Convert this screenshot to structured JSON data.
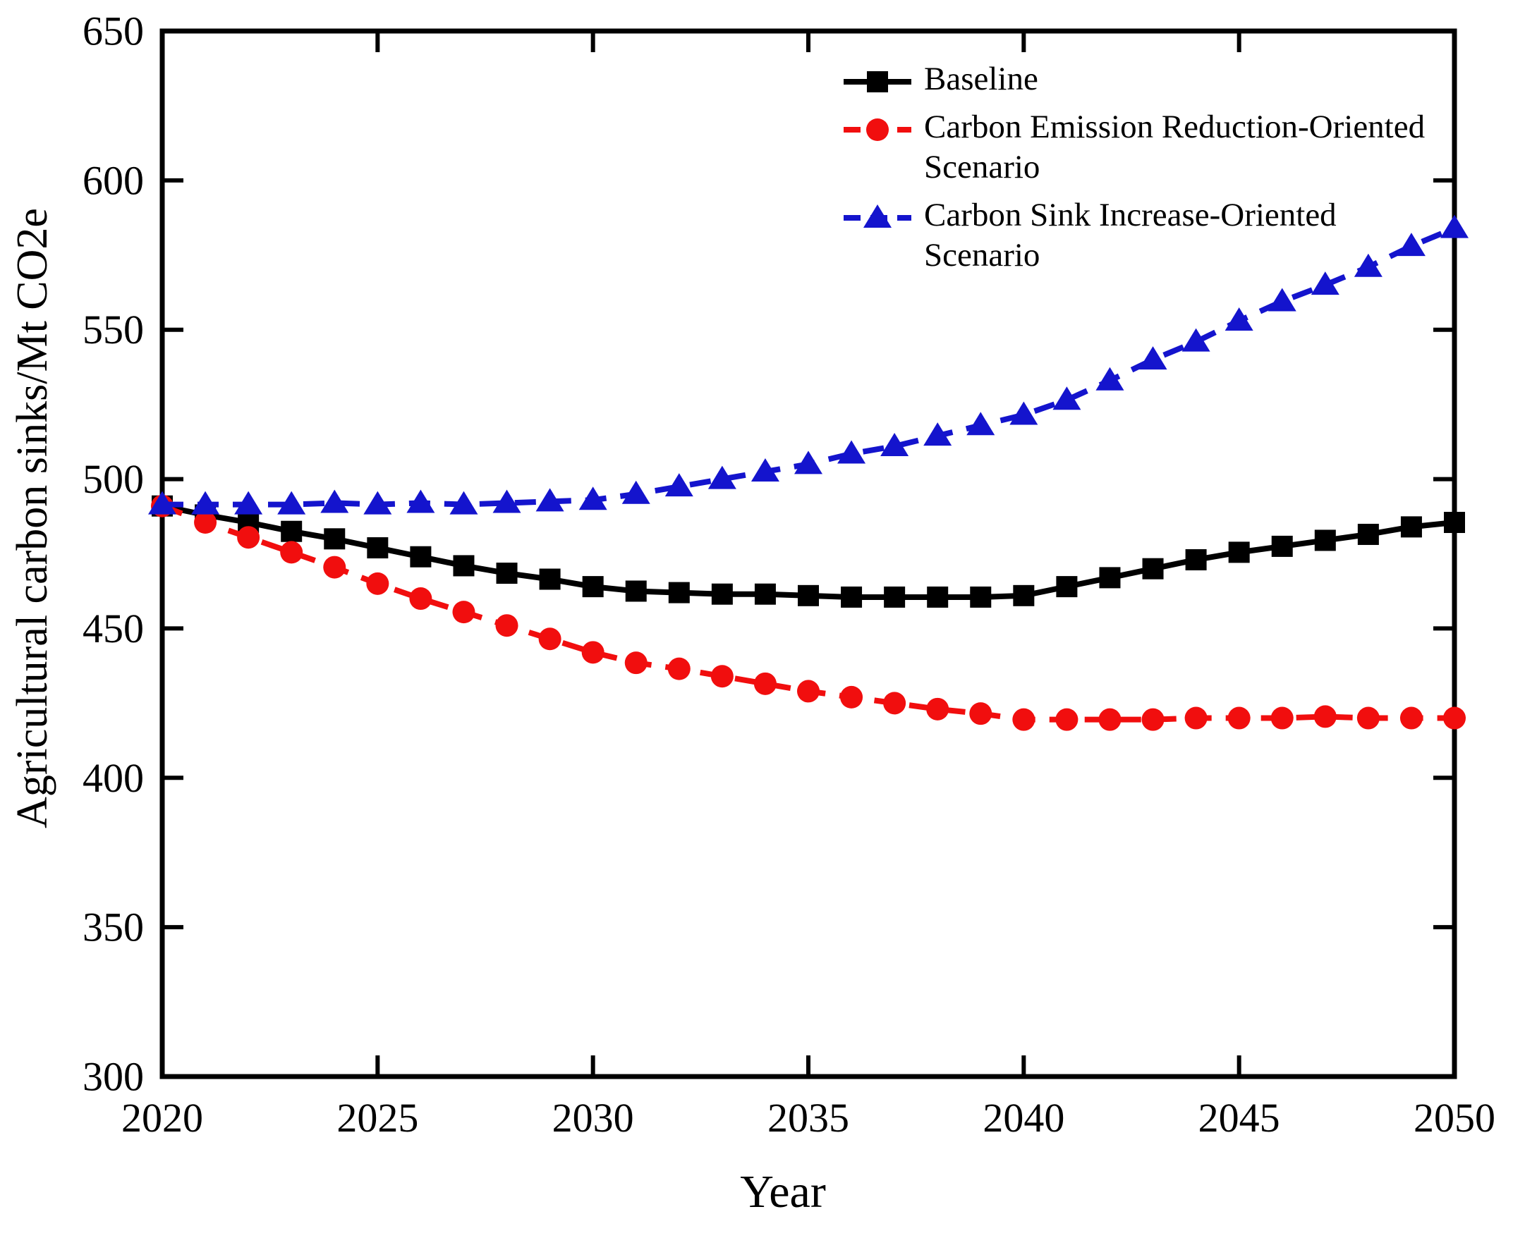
{
  "chart_data": {
    "type": "line",
    "title": "",
    "xlabel": "Year",
    "ylabel": "Agricultural carbon sinks/Mt CO2e",
    "xlim": [
      2020,
      2050
    ],
    "ylim": [
      300,
      650
    ],
    "x_ticks": [
      2020,
      2025,
      2030,
      2035,
      2040,
      2045,
      2050
    ],
    "y_ticks": [
      300,
      350,
      400,
      450,
      500,
      550,
      600,
      650
    ],
    "grid": false,
    "legend_position": "upper-right-inside-no-border",
    "x": [
      2020,
      2021,
      2022,
      2023,
      2024,
      2025,
      2026,
      2027,
      2028,
      2029,
      2030,
      2031,
      2032,
      2033,
      2034,
      2035,
      2036,
      2037,
      2038,
      2039,
      2040,
      2041,
      2042,
      2043,
      2044,
      2045,
      2046,
      2047,
      2048,
      2049,
      2050
    ],
    "series": [
      {
        "name": "Baseline",
        "color": "#000000",
        "line_style": "solid",
        "marker": "square",
        "values": [
          491,
          488,
          485.5,
          482.5,
          480,
          477,
          474,
          471,
          468.5,
          466.5,
          464,
          462.5,
          462,
          461.5,
          461.5,
          461,
          460.5,
          460.5,
          460.5,
          460.5,
          461,
          464,
          467,
          470,
          473,
          475.5,
          477.5,
          479.5,
          481.5,
          484,
          485.5
        ]
      },
      {
        "name": "Carbon Emission Reduction-Oriented Scenario",
        "color": "#f10e0e",
        "line_style": "dashed",
        "marker": "circle",
        "values": [
          491,
          485.5,
          480.5,
          475.5,
          470.5,
          465,
          460,
          455.5,
          451,
          446.5,
          442,
          438.5,
          436.5,
          434,
          431.5,
          429,
          427,
          425,
          423,
          421.5,
          419.5,
          419.5,
          419.5,
          419.5,
          420,
          420,
          420,
          420.5,
          420,
          420,
          420
        ]
      },
      {
        "name": "Carbon Sink Increase-Oriented Scenario",
        "color": "#1414cd",
        "line_style": "dashed",
        "marker": "triangle",
        "values": [
          491.5,
          491.5,
          491.5,
          491.5,
          492,
          491.5,
          492,
          491.5,
          492,
          492.5,
          493,
          495,
          497.5,
          500,
          502.5,
          505,
          508.5,
          511,
          514.5,
          518,
          521.5,
          526.5,
          533,
          540,
          546,
          553,
          559.5,
          565,
          571,
          578,
          584
        ]
      }
    ]
  }
}
